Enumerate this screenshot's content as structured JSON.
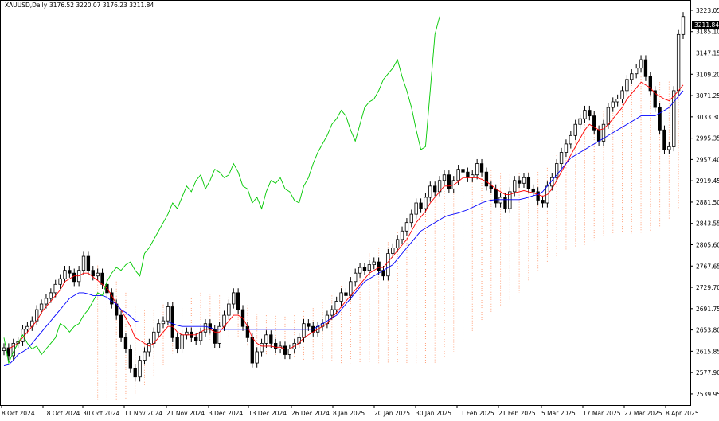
{
  "header": {
    "symbol": "XAUUSD,Daily",
    "ohlc": "3176.52 3220.07 3176.23 3211.84"
  },
  "current_price_label": "3211.84",
  "colors": {
    "background": "#ffffff",
    "frame": "#000000",
    "bull_candle": "#ffffff",
    "bear_candle": "#000000",
    "tenkan": "#ff0000",
    "kijun": "#0000ff",
    "chikou": "#00c800",
    "cloud": "#ffa07a"
  },
  "chart_data": {
    "type": "candlestick",
    "indicator": "Ichimoku",
    "ylim": [
      2520,
      3240
    ],
    "y_ticks": [
      "3223.05",
      "3185.10",
      "3147.15",
      "3109.20",
      "3071.25",
      "3033.30",
      "2995.35",
      "2957.40",
      "2919.45",
      "2881.50",
      "2843.55",
      "2805.60",
      "2767.65",
      "2729.70",
      "2691.75",
      "2653.80",
      "2615.85",
      "2577.90",
      "2539.95"
    ],
    "x_ticks": [
      "8 Oct 2024",
      "18 Oct 2024",
      "30 Oct 2024",
      "11 Nov 2024",
      "21 Nov 2024",
      "3 Dec 2024",
      "13 Dec 2024",
      "26 Dec 2024",
      "8 Jan 2025",
      "20 Jan 2025",
      "30 Jan 2025",
      "11 Feb 2025",
      "21 Feb 2025",
      "5 Mar 2025",
      "17 Mar 2025",
      "27 Mar 2025",
      "8 Apr 2025"
    ],
    "candles_close": [
      2622,
      2608,
      2630,
      2633,
      2655,
      2660,
      2670,
      2690,
      2700,
      2710,
      2720,
      2735,
      2745,
      2760,
      2755,
      2740,
      2760,
      2785,
      2760,
      2750,
      2755,
      2735,
      2720,
      2700,
      2680,
      2640,
      2620,
      2585,
      2570,
      2600,
      2615,
      2630,
      2650,
      2665,
      2670,
      2695,
      2640,
      2620,
      2645,
      2650,
      2640,
      2635,
      2650,
      2665,
      2655,
      2630,
      2660,
      2680,
      2700,
      2720,
      2690,
      2660,
      2640,
      2595,
      2615,
      2630,
      2645,
      2630,
      2620,
      2625,
      2610,
      2620,
      2630,
      2640,
      2665,
      2660,
      2650,
      2660,
      2665,
      2680,
      2690,
      2705,
      2720,
      2715,
      2740,
      2755,
      2765,
      2760,
      2770,
      2775,
      2760,
      2750,
      2790,
      2800,
      2815,
      2830,
      2845,
      2860,
      2880,
      2870,
      2890,
      2910,
      2900,
      2920,
      2930,
      2905,
      2920,
      2940,
      2935,
      2925,
      2930,
      2950,
      2935,
      2910,
      2905,
      2880,
      2890,
      2870,
      2900,
      2920,
      2915,
      2925,
      2905,
      2900,
      2885,
      2880,
      2910,
      2925,
      2950,
      2970,
      2985,
      3000,
      3020,
      3030,
      3045,
      3035,
      3010,
      2990,
      3020,
      3050,
      3060,
      3065,
      3080,
      3100,
      3110,
      3120,
      3135,
      3105,
      3080,
      3050,
      3010,
      2975,
      2980,
      3080,
      3180,
      3212
    ],
    "tenkan": [
      2620,
      2620,
      2625,
      2630,
      2640,
      2650,
      2660,
      2670,
      2685,
      2695,
      2705,
      2715,
      2725,
      2740,
      2745,
      2750,
      2750,
      2755,
      2755,
      2748,
      2742,
      2735,
      2728,
      2715,
      2700,
      2690,
      2675,
      2660,
      2640,
      2635,
      2630,
      2625,
      2630,
      2640,
      2650,
      2660,
      2660,
      2650,
      2645,
      2645,
      2645,
      2645,
      2650,
      2655,
      2655,
      2650,
      2650,
      2660,
      2670,
      2680,
      2680,
      2675,
      2660,
      2640,
      2630,
      2625,
      2625,
      2625,
      2623,
      2623,
      2620,
      2620,
      2625,
      2630,
      2640,
      2645,
      2650,
      2655,
      2660,
      2665,
      2675,
      2685,
      2695,
      2705,
      2715,
      2725,
      2735,
      2745,
      2755,
      2760,
      2765,
      2765,
      2775,
      2785,
      2795,
      2805,
      2815,
      2830,
      2845,
      2855,
      2865,
      2880,
      2890,
      2900,
      2910,
      2910,
      2912,
      2918,
      2925,
      2925,
      2925,
      2925,
      2922,
      2918,
      2912,
      2905,
      2900,
      2895,
      2895,
      2898,
      2900,
      2902,
      2900,
      2898,
      2895,
      2892,
      2895,
      2905,
      2920,
      2935,
      2950,
      2965,
      2980,
      2995,
      3010,
      3020,
      3015,
      3010,
      3012,
      3020,
      3030,
      3040,
      3050,
      3065,
      3075,
      3085,
      3095,
      3090,
      3085,
      3075,
      3070,
      3065,
      3062,
      3070,
      3080,
      3090
    ],
    "kijun": [
      2590,
      2592,
      2600,
      2610,
      2615,
      2620,
      2630,
      2640,
      2650,
      2660,
      2670,
      2680,
      2690,
      2700,
      2710,
      2715,
      2720,
      2720,
      2718,
      2715,
      2715,
      2715,
      2712,
      2705,
      2700,
      2690,
      2685,
      2678,
      2670,
      2668,
      2668,
      2668,
      2668,
      2668,
      2668,
      2668,
      2665,
      2662,
      2660,
      2660,
      2660,
      2660,
      2660,
      2660,
      2658,
      2655,
      2655,
      2655,
      2655,
      2655,
      2655,
      2655,
      2655,
      2655,
      2655,
      2655,
      2655,
      2655,
      2655,
      2655,
      2655,
      2655,
      2655,
      2655,
      2655,
      2655,
      2655,
      2660,
      2665,
      2670,
      2675,
      2680,
      2690,
      2700,
      2710,
      2720,
      2730,
      2740,
      2745,
      2750,
      2755,
      2760,
      2765,
      2770,
      2780,
      2790,
      2800,
      2810,
      2820,
      2830,
      2835,
      2840,
      2845,
      2850,
      2855,
      2858,
      2860,
      2862,
      2865,
      2868,
      2872,
      2876,
      2880,
      2883,
      2885,
      2886,
      2886,
      2886,
      2886,
      2886,
      2886,
      2888,
      2890,
      2893,
      2895,
      2900,
      2910,
      2920,
      2930,
      2940,
      2950,
      2960,
      2965,
      2970,
      2975,
      2980,
      2985,
      2990,
      2995,
      3000,
      3005,
      3010,
      3015,
      3020,
      3025,
      3030,
      3035,
      3035,
      3035,
      3035,
      3040,
      3045,
      3050,
      3060,
      3070,
      3080
    ]
  }
}
